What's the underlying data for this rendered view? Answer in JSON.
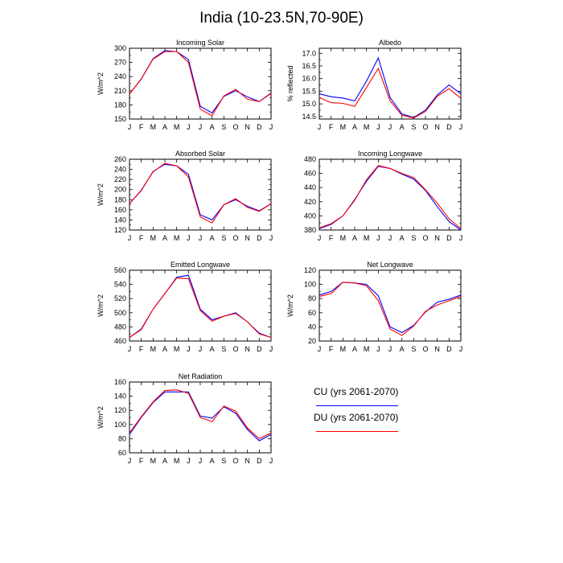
{
  "title": "India (10-23.5N,70-90E)",
  "colors": {
    "cu": "#0000ff",
    "du": "#ff0000"
  },
  "legend": {
    "cu_label": "CU (yrs 2061-2070)",
    "du_label": "DU (yrs 2061-2070)"
  },
  "chart_data": [
    {
      "type": "line",
      "title": "Incoming Solar",
      "ylabel": "W/m^2",
      "categories": [
        "J",
        "F",
        "M",
        "A",
        "M",
        "J",
        "J",
        "A",
        "S",
        "O",
        "N",
        "D",
        "J"
      ],
      "ylim": [
        150,
        300
      ],
      "yticks": [
        150,
        180,
        210,
        240,
        270,
        300
      ],
      "series": [
        {
          "name": "CU (yrs 2061-2070)",
          "color": "#0000ff",
          "values": [
            203,
            235,
            278,
            295,
            293,
            276,
            177,
            163,
            198,
            210,
            197,
            187,
            205
          ]
        },
        {
          "name": "DU (yrs 2061-2070)",
          "color": "#ff0000",
          "values": [
            203,
            235,
            277,
            293,
            293,
            270,
            171,
            157,
            199,
            213,
            192,
            187,
            204
          ]
        }
      ]
    },
    {
      "type": "line",
      "title": "Albedo",
      "ylabel": "% reflected",
      "categories": [
        "J",
        "F",
        "M",
        "A",
        "M",
        "J",
        "J",
        "A",
        "S",
        "O",
        "N",
        "D",
        "J"
      ],
      "ylim": [
        14.4,
        17.2
      ],
      "yticks": [
        14.5,
        15.0,
        15.5,
        16.0,
        16.5,
        17.0
      ],
      "series": [
        {
          "name": "CU (yrs 2061-2070)",
          "color": "#0000ff",
          "values": [
            15.4,
            15.28,
            15.23,
            15.12,
            15.9,
            16.82,
            15.25,
            14.6,
            14.46,
            14.75,
            15.35,
            15.75,
            15.4
          ]
        },
        {
          "name": "DU (yrs 2061-2070)",
          "color": "#ff0000",
          "values": [
            15.25,
            15.05,
            15.02,
            14.9,
            15.65,
            16.4,
            15.12,
            14.55,
            14.44,
            14.7,
            15.3,
            15.6,
            15.22
          ]
        }
      ]
    },
    {
      "type": "line",
      "title": "Absorbed Solar",
      "ylabel": "W/m^2",
      "categories": [
        "J",
        "F",
        "M",
        "A",
        "M",
        "J",
        "J",
        "A",
        "S",
        "O",
        "N",
        "D",
        "J"
      ],
      "ylim": [
        120,
        260
      ],
      "yticks": [
        120,
        140,
        160,
        180,
        200,
        220,
        240,
        260
      ],
      "series": [
        {
          "name": "CU (yrs 2061-2070)",
          "color": "#0000ff",
          "values": [
            172,
            198,
            236,
            250,
            247,
            230,
            150,
            140,
            170,
            180,
            167,
            158,
            172
          ]
        },
        {
          "name": "DU (yrs 2061-2070)",
          "color": "#ff0000",
          "values": [
            172,
            199,
            235,
            252,
            247,
            225,
            146,
            134,
            170,
            182,
            165,
            157,
            172
          ]
        }
      ]
    },
    {
      "type": "line",
      "title": "Incoming Longwave",
      "ylabel": "",
      "categories": [
        "J",
        "F",
        "M",
        "A",
        "M",
        "J",
        "J",
        "A",
        "S",
        "O",
        "N",
        "D",
        "J"
      ],
      "ylim": [
        380,
        480
      ],
      "yticks": [
        380,
        400,
        420,
        440,
        460,
        480
      ],
      "series": [
        {
          "name": "CU (yrs 2061-2070)",
          "color": "#0000ff",
          "values": [
            382,
            388,
            400,
            423,
            449,
            470,
            467,
            459,
            452,
            436,
            413,
            392,
            380
          ]
        },
        {
          "name": "DU (yrs 2061-2070)",
          "color": "#ff0000",
          "values": [
            383,
            389,
            400,
            422,
            451,
            471,
            467,
            460,
            454,
            437,
            418,
            396,
            382
          ]
        }
      ]
    },
    {
      "type": "line",
      "title": "Emitted Longwave",
      "ylabel": "W/m^2",
      "categories": [
        "J",
        "F",
        "M",
        "A",
        "M",
        "J",
        "J",
        "A",
        "S",
        "O",
        "N",
        "D",
        "J"
      ],
      "ylim": [
        460,
        560
      ],
      "yticks": [
        460,
        480,
        500,
        520,
        540,
        560
      ],
      "series": [
        {
          "name": "CU (yrs 2061-2070)",
          "color": "#0000ff",
          "values": [
            465,
            477,
            505,
            527,
            550,
            553,
            505,
            490,
            495,
            500,
            487,
            471,
            465
          ]
        },
        {
          "name": "DU (yrs 2061-2070)",
          "color": "#ff0000",
          "values": [
            465,
            476,
            505,
            527,
            549,
            548,
            503,
            488,
            495,
            499,
            487,
            470,
            465
          ]
        }
      ]
    },
    {
      "type": "line",
      "title": "Net Longwave",
      "ylabel": "W/m^2",
      "categories": [
        "J",
        "F",
        "M",
        "A",
        "M",
        "J",
        "J",
        "A",
        "S",
        "O",
        "N",
        "D",
        "J"
      ],
      "ylim": [
        20,
        120
      ],
      "yticks": [
        20,
        40,
        60,
        80,
        100,
        120
      ],
      "series": [
        {
          "name": "CU (yrs 2061-2070)",
          "color": "#0000ff",
          "values": [
            85,
            90,
            103,
            102,
            100,
            84,
            40,
            32,
            42,
            61,
            75,
            79,
            85
          ]
        },
        {
          "name": "DU (yrs 2061-2070)",
          "color": "#ff0000",
          "values": [
            83,
            87,
            103,
            102,
            98,
            77,
            37,
            28,
            41,
            62,
            71,
            77,
            83
          ]
        }
      ]
    },
    {
      "type": "line",
      "title": "Net Radiation",
      "ylabel": "W/m^2",
      "categories": [
        "J",
        "F",
        "M",
        "A",
        "M",
        "J",
        "J",
        "A",
        "S",
        "O",
        "N",
        "D",
        "J"
      ],
      "ylim": [
        60,
        160
      ],
      "yticks": [
        60,
        80,
        100,
        120,
        140,
        160
      ],
      "series": [
        {
          "name": "CU (yrs 2061-2070)",
          "color": "#0000ff",
          "values": [
            86,
            110,
            131,
            146,
            146,
            146,
            112,
            109,
            125,
            116,
            93,
            77,
            86
          ]
        },
        {
          "name": "DU (yrs 2061-2070)",
          "color": "#ff0000",
          "values": [
            88,
            111,
            132,
            148,
            149,
            144,
            110,
            104,
            126,
            119,
            95,
            80,
            88
          ]
        }
      ]
    }
  ]
}
